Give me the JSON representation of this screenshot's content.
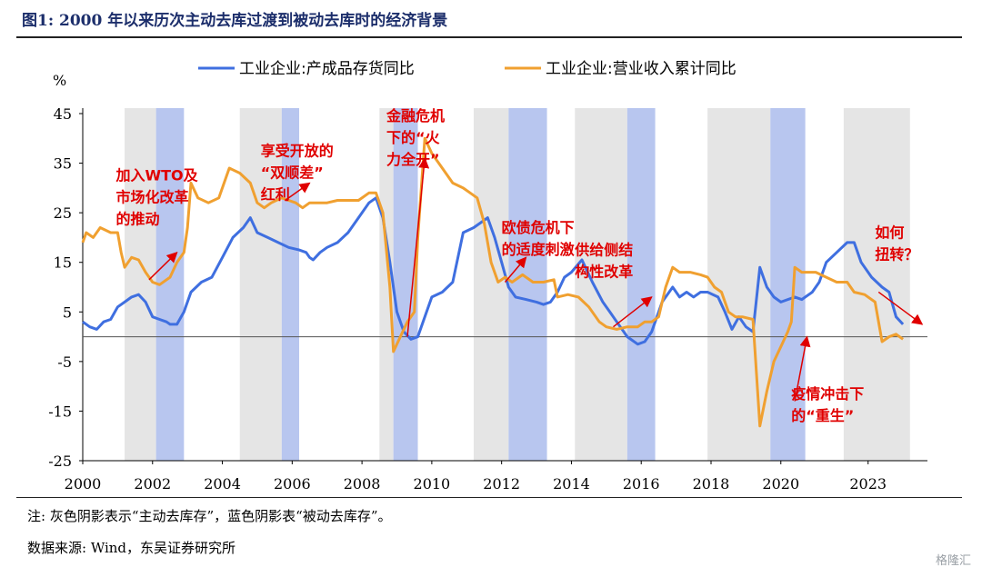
{
  "title": "图1:  2000 年以来历次主动去库过渡到被动去库时的经济背景",
  "note": "注:  灰色阴影表示“主动去库存”，蓝色阴影表“被动去库存”。",
  "source": "数据来源:  Wind，东吴证券研究所",
  "watermark": "格隆汇",
  "colors": {
    "inventory": "#3f6fe0",
    "revenue": "#f0a030",
    "gray_shade": "#e5e5e5",
    "blue_shade": "#b8c6ef",
    "annotation": "#e00000"
  },
  "chart_data": {
    "type": "line",
    "ylabel": "%",
    "ylim": [
      -25,
      45
    ],
    "yticks": [
      45,
      35,
      25,
      15,
      5,
      -5,
      -15,
      -25
    ],
    "xlim": [
      2000,
      2024.2
    ],
    "xticks": [
      "2000",
      "2002",
      "2004",
      "2006",
      "2008",
      "2010",
      "2012",
      "2014",
      "2016",
      "2018",
      "2020",
      "2023"
    ],
    "xtick_positions": [
      2000,
      2002,
      2004,
      2006,
      2008,
      2010,
      2012,
      2014,
      2016,
      2018,
      2020,
      2022.5
    ],
    "series": [
      {
        "name": "工业企业:产成品存货同比",
        "key": "inventory",
        "points": [
          [
            2000.0,
            3
          ],
          [
            2000.2,
            2
          ],
          [
            2000.4,
            1.5
          ],
          [
            2000.6,
            3
          ],
          [
            2000.8,
            3.5
          ],
          [
            2001.0,
            6
          ],
          [
            2001.2,
            7
          ],
          [
            2001.4,
            8
          ],
          [
            2001.6,
            8.5
          ],
          [
            2001.8,
            7
          ],
          [
            2002.0,
            4
          ],
          [
            2002.2,
            3.5
          ],
          [
            2002.4,
            3
          ],
          [
            2002.5,
            2.5
          ],
          [
            2002.7,
            2.5
          ],
          [
            2002.9,
            5
          ],
          [
            2003.1,
            9
          ],
          [
            2003.4,
            11
          ],
          [
            2003.7,
            12
          ],
          [
            2004.0,
            16
          ],
          [
            2004.3,
            20
          ],
          [
            2004.6,
            22
          ],
          [
            2004.8,
            24
          ],
          [
            2005.0,
            21
          ],
          [
            2005.3,
            20
          ],
          [
            2005.6,
            19
          ],
          [
            2005.9,
            18
          ],
          [
            2006.2,
            17.5
          ],
          [
            2006.4,
            17
          ],
          [
            2006.5,
            16
          ],
          [
            2006.6,
            15.5
          ],
          [
            2006.8,
            17
          ],
          [
            2007.0,
            18
          ],
          [
            2007.3,
            19
          ],
          [
            2007.6,
            21
          ],
          [
            2007.9,
            24
          ],
          [
            2008.2,
            27
          ],
          [
            2008.4,
            28
          ],
          [
            2008.6,
            24
          ],
          [
            2008.8,
            15
          ],
          [
            2009.0,
            5
          ],
          [
            2009.2,
            1
          ],
          [
            2009.4,
            -0.5
          ],
          [
            2009.6,
            0
          ],
          [
            2009.8,
            4
          ],
          [
            2010.0,
            8
          ],
          [
            2010.3,
            9
          ],
          [
            2010.6,
            11
          ],
          [
            2010.9,
            21
          ],
          [
            2011.2,
            22
          ],
          [
            2011.4,
            23
          ],
          [
            2011.6,
            24
          ],
          [
            2011.8,
            20
          ],
          [
            2012.0,
            15
          ],
          [
            2012.2,
            10
          ],
          [
            2012.4,
            8
          ],
          [
            2012.7,
            7.5
          ],
          [
            2013.0,
            7
          ],
          [
            2013.2,
            6.5
          ],
          [
            2013.4,
            7
          ],
          [
            2013.6,
            9
          ],
          [
            2013.8,
            12
          ],
          [
            2014.0,
            13
          ],
          [
            2014.3,
            15.5
          ],
          [
            2014.6,
            11
          ],
          [
            2014.9,
            7
          ],
          [
            2015.1,
            5
          ],
          [
            2015.3,
            3
          ],
          [
            2015.6,
            0
          ],
          [
            2015.9,
            -1.5
          ],
          [
            2016.1,
            -1
          ],
          [
            2016.3,
            1
          ],
          [
            2016.6,
            7
          ],
          [
            2016.9,
            10
          ],
          [
            2017.1,
            8
          ],
          [
            2017.3,
            9
          ],
          [
            2017.5,
            8
          ],
          [
            2017.7,
            9
          ],
          [
            2017.9,
            9
          ],
          [
            2018.2,
            8
          ],
          [
            2018.4,
            5
          ],
          [
            2018.6,
            1.5
          ],
          [
            2018.8,
            4
          ],
          [
            2019.0,
            2
          ],
          [
            2019.2,
            1
          ],
          [
            2019.4,
            14
          ],
          [
            2019.6,
            10
          ],
          [
            2019.8,
            8
          ],
          [
            2020.0,
            7
          ],
          [
            2020.2,
            7.5
          ],
          [
            2020.4,
            8
          ],
          [
            2020.6,
            7.5
          ],
          [
            2020.9,
            9
          ],
          [
            2021.1,
            11
          ],
          [
            2021.3,
            15
          ],
          [
            2021.6,
            17
          ],
          [
            2021.9,
            19
          ],
          [
            2022.1,
            19
          ],
          [
            2022.3,
            15
          ],
          [
            2022.6,
            12
          ],
          [
            2022.9,
            10
          ],
          [
            2023.1,
            9
          ],
          [
            2023.3,
            4
          ],
          [
            2023.5,
            2.5
          ]
        ]
      },
      {
        "name": "工业企业:营业收入累计同比",
        "key": "revenue",
        "points": [
          [
            2000.0,
            19
          ],
          [
            2000.1,
            21
          ],
          [
            2000.3,
            20
          ],
          [
            2000.5,
            22
          ],
          [
            2000.8,
            21
          ],
          [
            2001.0,
            21
          ],
          [
            2001.1,
            17
          ],
          [
            2001.2,
            14
          ],
          [
            2001.4,
            16
          ],
          [
            2001.6,
            15.5
          ],
          [
            2001.8,
            13
          ],
          [
            2002.0,
            11
          ],
          [
            2002.2,
            10.5
          ],
          [
            2002.5,
            12
          ],
          [
            2002.7,
            15
          ],
          [
            2002.9,
            17
          ],
          [
            2003.0,
            22
          ],
          [
            2003.1,
            31
          ],
          [
            2003.3,
            28
          ],
          [
            2003.6,
            27
          ],
          [
            2003.9,
            28
          ],
          [
            2004.2,
            34
          ],
          [
            2004.5,
            33
          ],
          [
            2004.8,
            31
          ],
          [
            2005.0,
            27
          ],
          [
            2005.2,
            26
          ],
          [
            2005.4,
            27
          ],
          [
            2005.7,
            28
          ],
          [
            2005.9,
            27.5
          ],
          [
            2006.1,
            27
          ],
          [
            2006.3,
            26
          ],
          [
            2006.5,
            27
          ],
          [
            2006.8,
            27
          ],
          [
            2007.0,
            27
          ],
          [
            2007.3,
            27.5
          ],
          [
            2007.6,
            27.5
          ],
          [
            2007.9,
            27.5
          ],
          [
            2008.2,
            29
          ],
          [
            2008.4,
            29
          ],
          [
            2008.6,
            25
          ],
          [
            2008.8,
            10
          ],
          [
            2008.9,
            -3
          ],
          [
            2009.1,
            0
          ],
          [
            2009.3,
            3
          ],
          [
            2009.5,
            5
          ],
          [
            2009.6,
            20
          ],
          [
            2009.8,
            40
          ],
          [
            2010.0,
            37
          ],
          [
            2010.3,
            34
          ],
          [
            2010.6,
            31
          ],
          [
            2010.9,
            30
          ],
          [
            2011.1,
            29
          ],
          [
            2011.3,
            28
          ],
          [
            2011.5,
            23
          ],
          [
            2011.7,
            15
          ],
          [
            2011.9,
            11
          ],
          [
            2012.1,
            12
          ],
          [
            2012.3,
            11
          ],
          [
            2012.6,
            12.5
          ],
          [
            2012.9,
            11
          ],
          [
            2013.2,
            11
          ],
          [
            2013.5,
            11.5
          ],
          [
            2013.6,
            8
          ],
          [
            2013.9,
            8.5
          ],
          [
            2014.2,
            8
          ],
          [
            2014.5,
            6
          ],
          [
            2014.8,
            3
          ],
          [
            2015.0,
            2
          ],
          [
            2015.3,
            1.5
          ],
          [
            2015.6,
            2
          ],
          [
            2015.9,
            2
          ],
          [
            2016.1,
            3
          ],
          [
            2016.3,
            3
          ],
          [
            2016.5,
            4
          ],
          [
            2016.7,
            10
          ],
          [
            2016.9,
            14
          ],
          [
            2017.1,
            13
          ],
          [
            2017.4,
            13
          ],
          [
            2017.7,
            12.5
          ],
          [
            2017.9,
            12
          ],
          [
            2018.1,
            10
          ],
          [
            2018.3,
            9
          ],
          [
            2018.5,
            5
          ],
          [
            2018.7,
            4
          ],
          [
            2018.9,
            4
          ],
          [
            2019.2,
            3.5
          ],
          [
            2019.4,
            -18
          ],
          [
            2019.6,
            -11
          ],
          [
            2019.8,
            -5
          ],
          [
            2020.0,
            -2
          ],
          [
            2020.2,
            1
          ],
          [
            2020.3,
            3
          ],
          [
            2020.4,
            14
          ],
          [
            2020.6,
            13
          ],
          [
            2020.8,
            13
          ],
          [
            2021.0,
            13
          ],
          [
            2021.3,
            12
          ],
          [
            2021.6,
            11
          ],
          [
            2021.9,
            11
          ],
          [
            2022.1,
            9
          ],
          [
            2022.4,
            8.5
          ],
          [
            2022.7,
            7
          ],
          [
            2022.9,
            -1
          ],
          [
            2023.1,
            0
          ],
          [
            2023.3,
            0.5
          ],
          [
            2023.5,
            -0.5
          ]
        ]
      }
    ],
    "shaded_periods": [
      {
        "type": "gray",
        "start": 2001.2,
        "end": 2002.1
      },
      {
        "type": "blue",
        "start": 2002.1,
        "end": 2002.9
      },
      {
        "type": "gray",
        "start": 2004.5,
        "end": 2005.7
      },
      {
        "type": "blue",
        "start": 2005.7,
        "end": 2006.2
      },
      {
        "type": "gray",
        "start": 2008.5,
        "end": 2008.9
      },
      {
        "type": "blue",
        "start": 2008.9,
        "end": 2009.6
      },
      {
        "type": "gray",
        "start": 2011.2,
        "end": 2012.2
      },
      {
        "type": "blue",
        "start": 2012.2,
        "end": 2013.3
      },
      {
        "type": "gray",
        "start": 2014.1,
        "end": 2015.6
      },
      {
        "type": "blue",
        "start": 2015.6,
        "end": 2016.4
      },
      {
        "type": "gray",
        "start": 2017.9,
        "end": 2019.7
      },
      {
        "type": "blue",
        "start": 2019.7,
        "end": 2020.7
      },
      {
        "type": "gray",
        "start": 2021.8,
        "end": 2023.7
      }
    ],
    "annotations": [
      {
        "lines": [
          "加入WTO及",
          "市场化改革",
          "的推动"
        ],
        "anchor_x": 2000.95,
        "anchor_y": 31.5,
        "arrow_from": [
          2001.9,
          11.5
        ],
        "arrow_to": [
          2002.7,
          17
        ]
      },
      {
        "lines": [
          "享受开放的",
          "“双顺差”",
          "红利"
        ],
        "anchor_x": 2005.1,
        "anchor_y": 36.5,
        "arrow_from": [
          2005.8,
          27.5
        ],
        "arrow_to": [
          2006.5,
          31
        ]
      },
      {
        "lines": [
          "金融危机",
          "下的“火",
          "力全开”"
        ],
        "anchor_x": 2008.7,
        "anchor_y": 43.5,
        "arrow_from": [
          2009.3,
          0
        ],
        "arrow_to": [
          2009.8,
          36
        ]
      },
      {
        "lines": [
          "欧债危机下",
          "的适度刺激"
        ],
        "anchor_x": 2012.0,
        "anchor_y": 21,
        "arrow_from": [
          2012.1,
          11
        ],
        "arrow_to": [
          2012.7,
          16
        ]
      },
      {
        "lines": [
          "供给侧结",
          "构性改革"
        ],
        "anchor_x": 2014.1,
        "anchor_y": 16.5,
        "arrow_from": [
          2015.2,
          2
        ],
        "arrow_to": [
          2016.3,
          8
        ]
      },
      {
        "lines": [
          "疫情冲击下",
          "的“重生”"
        ],
        "anchor_x": 2020.3,
        "anchor_y": -12.5,
        "arrow_from": [
          2020.4,
          -13
        ],
        "arrow_to": [
          2020.75,
          0
        ]
      },
      {
        "lines": [
          "如何",
          "扭转？"
        ],
        "anchor_x": 2022.7,
        "anchor_y": 20,
        "arrow_from": [
          2022.8,
          9
        ],
        "arrow_to": [
          2024.05,
          2.5
        ]
      }
    ]
  }
}
